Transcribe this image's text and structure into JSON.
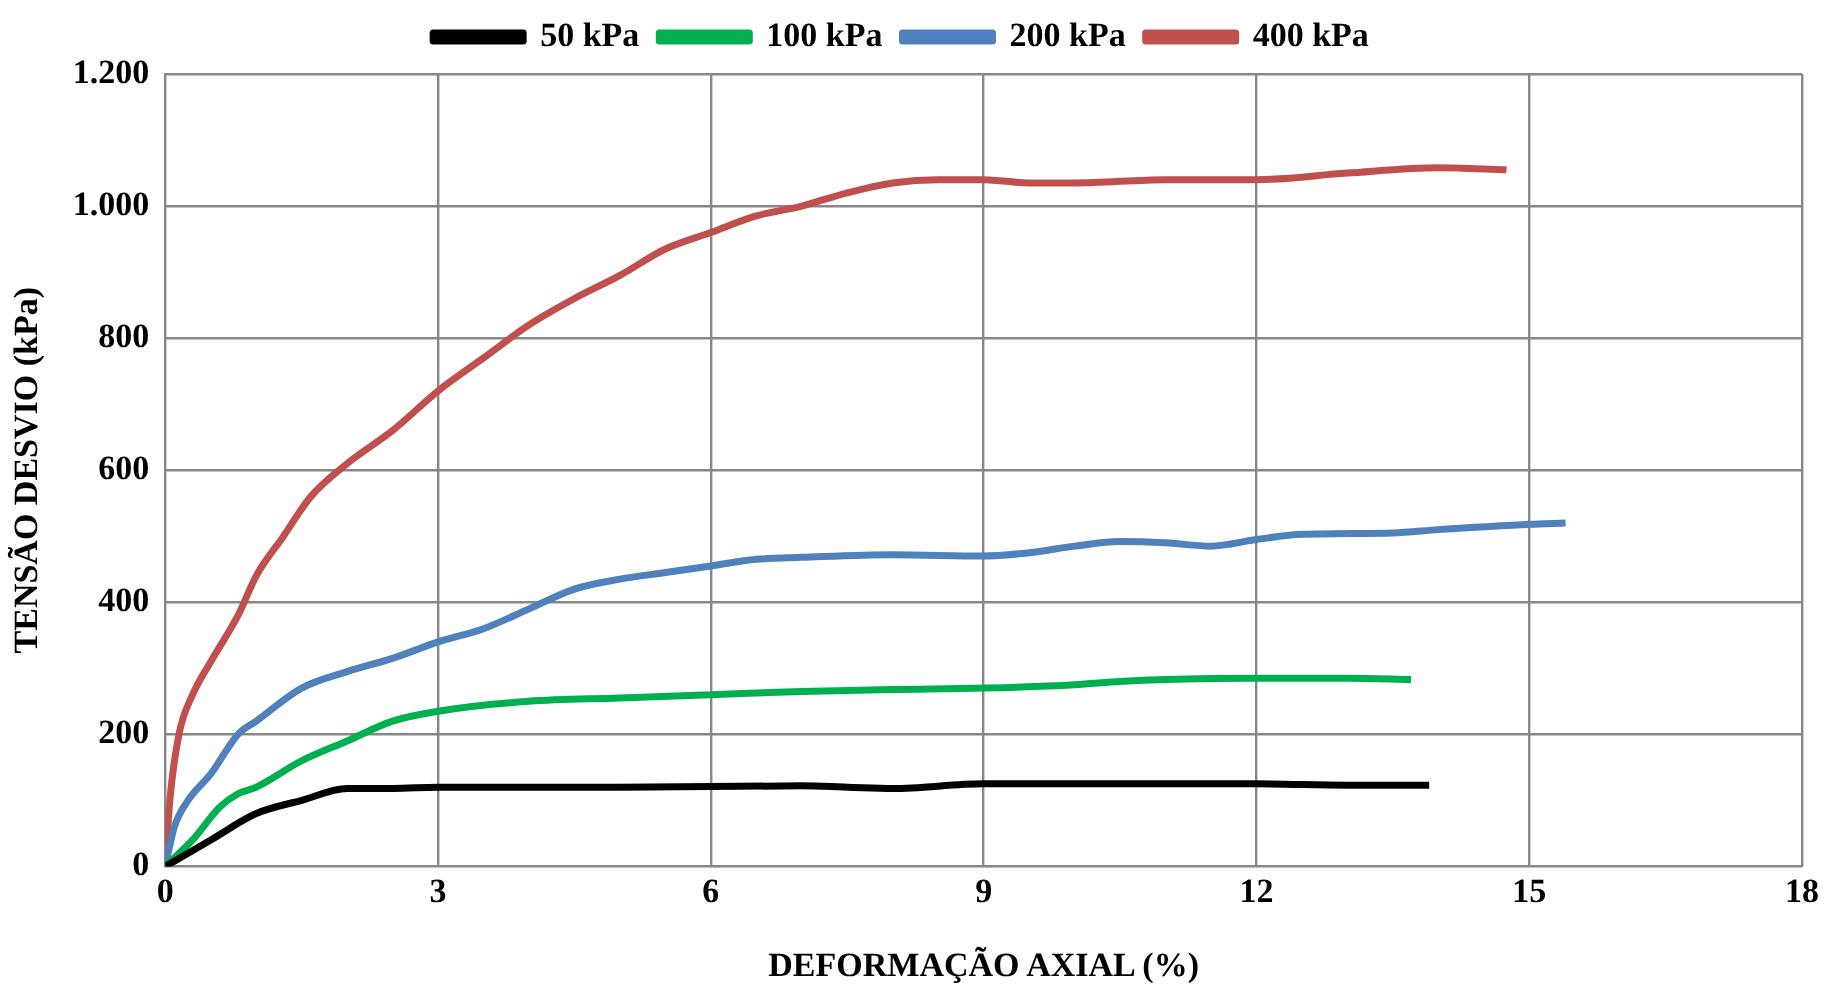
{
  "chart_data": {
    "type": "line",
    "xlabel": "DEFORMAÇÃO AXIAL (%)",
    "ylabel": "TENSÃO DESVIO (kPa)",
    "legend": "top",
    "grid": true,
    "marker": "none",
    "line_style": "solid",
    "xlim": [
      0,
      18
    ],
    "xticks": [
      0,
      3,
      6,
      9,
      12,
      15,
      18
    ],
    "ylim": [
      0,
      1200
    ],
    "yticks": [
      0,
      200,
      400,
      600,
      800,
      {
        "value": 1000,
        "label": "1.000"
      },
      {
        "value": 1200,
        "label": "1.200"
      }
    ],
    "series": [
      {
        "name": "50 kPa",
        "color": "#000000",
        "x": [
          0,
          0.5,
          1,
          1.5,
          2,
          2.5,
          3,
          5,
          7,
          7.5,
          8,
          9,
          10,
          11,
          12,
          13,
          13.9
        ],
        "values": [
          0,
          40,
          80,
          100,
          118,
          118,
          120,
          120,
          122,
          120,
          118,
          125,
          125,
          125,
          125,
          123,
          123
        ]
      },
      {
        "name": "100 kPa",
        "color": "#00b050",
        "x": [
          0,
          0.3,
          0.6,
          0.8,
          1,
          1.5,
          2,
          2.5,
          3,
          4,
          5,
          6,
          7,
          8,
          9,
          10,
          10.5,
          11,
          12,
          13,
          13.7
        ],
        "values": [
          0,
          40,
          90,
          110,
          120,
          160,
          190,
          220,
          235,
          250,
          255,
          260,
          265,
          268,
          270,
          275,
          280,
          283,
          285,
          285,
          283
        ]
      },
      {
        "name": "200 kPa",
        "color": "#4f81bd",
        "x": [
          0,
          0.1,
          0.25,
          0.5,
          0.8,
          1,
          1.5,
          2,
          2.5,
          3,
          3.5,
          4,
          4.5,
          5,
          5.5,
          6,
          6.5,
          7,
          8,
          9,
          9.5,
          10,
          10.5,
          11,
          11.5,
          12,
          12.5,
          13.5,
          14,
          15,
          15.4
        ],
        "values": [
          0,
          60,
          100,
          140,
          200,
          220,
          270,
          295,
          315,
          340,
          360,
          390,
          420,
          435,
          445,
          455,
          465,
          468,
          472,
          470,
          475,
          485,
          492,
          490,
          485,
          495,
          503,
          505,
          510,
          518,
          520
        ]
      },
      {
        "name": "400 kPa",
        "color": "#c0504d",
        "x": [
          0,
          0.05,
          0.15,
          0.3,
          0.5,
          0.8,
          1,
          1.3,
          1.6,
          2,
          2.5,
          3,
          3.5,
          4,
          4.5,
          5,
          5.5,
          6,
          6.5,
          7,
          7.5,
          8,
          8.5,
          9,
          9.5,
          10,
          11,
          12,
          13,
          14,
          14.75
        ],
        "values": [
          0,
          100,
          200,
          260,
          310,
          380,
          440,
          500,
          560,
          610,
          660,
          720,
          770,
          820,
          860,
          895,
          935,
          960,
          985,
          1000,
          1020,
          1035,
          1040,
          1040,
          1035,
          1035,
          1040,
          1040,
          1050,
          1058,
          1055
        ]
      }
    ]
  }
}
